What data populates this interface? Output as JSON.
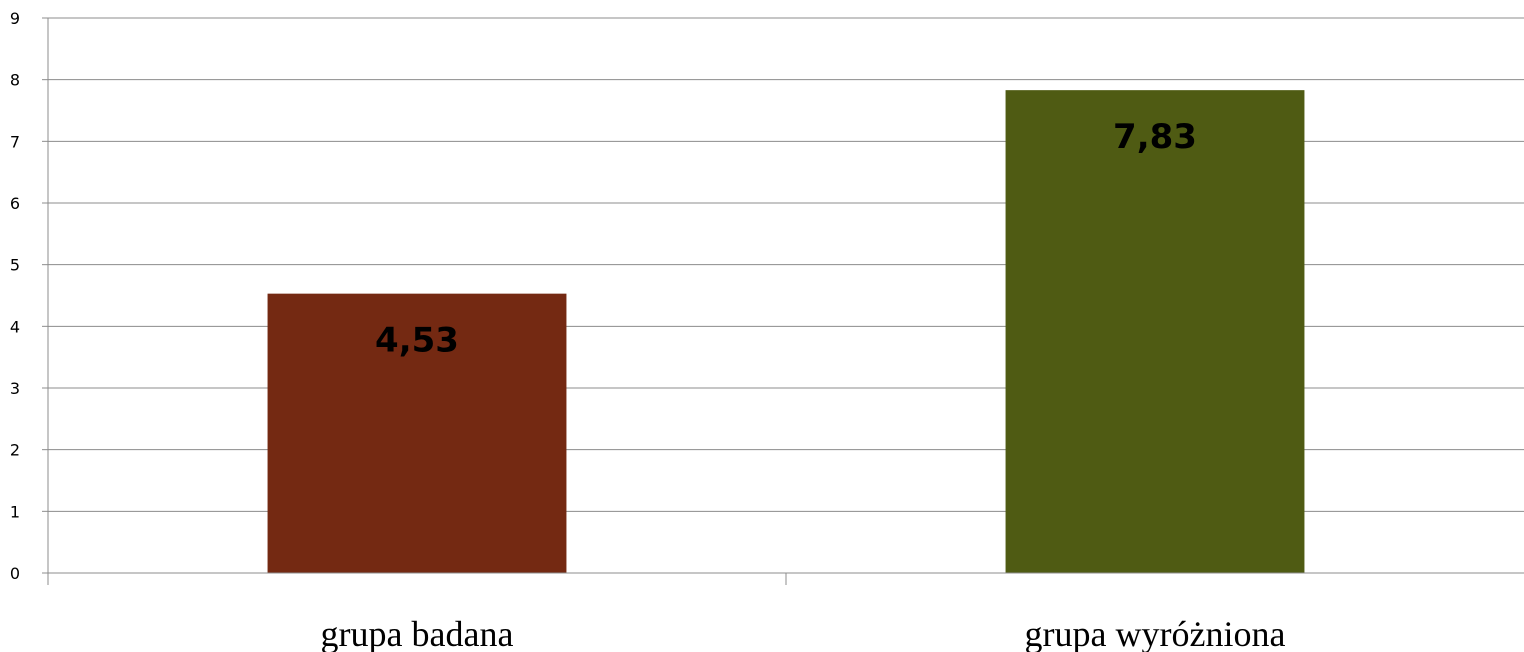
{
  "chart_data": {
    "type": "bar",
    "title": "",
    "xlabel": "",
    "ylabel": "",
    "categories": [
      "grupa badana",
      "grupa wyróżniona"
    ],
    "values": [
      4.53,
      7.83
    ],
    "value_labels": [
      "4,53",
      "7,83"
    ],
    "bar_colors": [
      "#742912",
      "#4f5b13"
    ],
    "ylim": [
      0,
      9
    ],
    "yticks": [
      0,
      1,
      2,
      3,
      4,
      5,
      6,
      7,
      8,
      9
    ],
    "ytick_labels": [
      "0",
      "1",
      "2",
      "3",
      "4",
      "5",
      "6",
      "7",
      "8",
      "9"
    ],
    "grid": true,
    "legend": "none"
  }
}
